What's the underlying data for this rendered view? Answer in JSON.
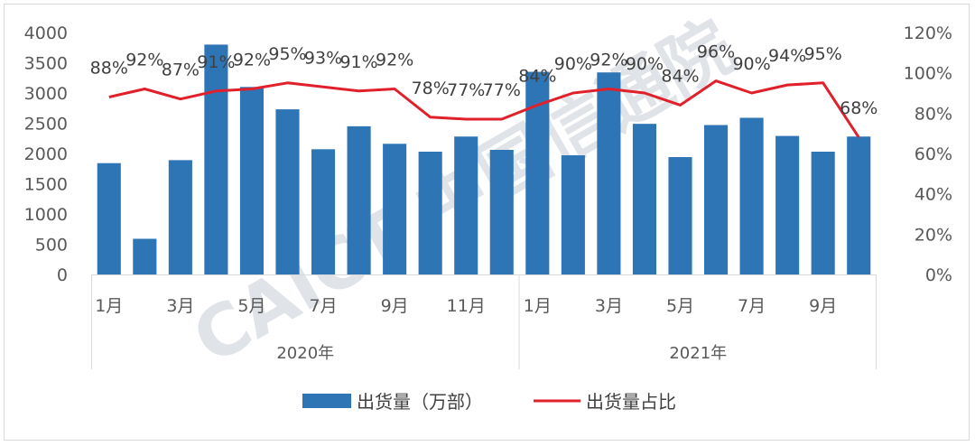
{
  "chart_data": {
    "type": "bar",
    "title": "",
    "xlabel": "",
    "ylabel": "",
    "y2label": "",
    "ylim": [
      0,
      4000
    ],
    "y2lim": [
      0,
      120
    ],
    "yticks": [
      "0",
      "500",
      "1000",
      "1500",
      "2000",
      "2500",
      "3000",
      "3500",
      "4000"
    ],
    "y2ticks": [
      "0%",
      "20%",
      "40%",
      "60%",
      "80%",
      "100%",
      "120%"
    ],
    "legend_position": "bottom",
    "groups": [
      {
        "label": "2020年",
        "count": 12
      },
      {
        "label": "2021年",
        "count": 10
      }
    ],
    "categories": [
      "1月",
      "",
      "3月",
      "",
      "5月",
      "",
      "7月",
      "",
      "9月",
      "",
      "11月",
      "",
      "1月",
      "",
      "3月",
      "",
      "5月",
      "",
      "7月",
      "",
      "9月",
      ""
    ],
    "series": [
      {
        "name": "出货量（万部）",
        "kind": "bar",
        "axis": "left",
        "color": "#2e75b6",
        "values": [
          1840,
          590,
          1890,
          3800,
          3100,
          2730,
          2070,
          2450,
          2160,
          2030,
          2280,
          2060,
          3350,
          1970,
          3340,
          2490,
          1940,
          2470,
          2590,
          2290,
          2030,
          2280
        ]
      },
      {
        "name": "出货量占比",
        "kind": "line",
        "axis": "right",
        "color": "#e0202a",
        "values": [
          88,
          92,
          87,
          91,
          92,
          95,
          93,
          91,
          92,
          78,
          77,
          77,
          84,
          90,
          92,
          90,
          84,
          96,
          90,
          94,
          95,
          68
        ],
        "labels": [
          "88%",
          "92%",
          "87%",
          "91%",
          "92%",
          "95%",
          "93%",
          "91%",
          "92%",
          "78%",
          "77%",
          "77%",
          "84%",
          "90%",
          "92%",
          "90%",
          "84%",
          "96%",
          "90%",
          "94%",
          "95%",
          "68%"
        ]
      }
    ]
  },
  "watermark": "CAICT 中国信通院"
}
